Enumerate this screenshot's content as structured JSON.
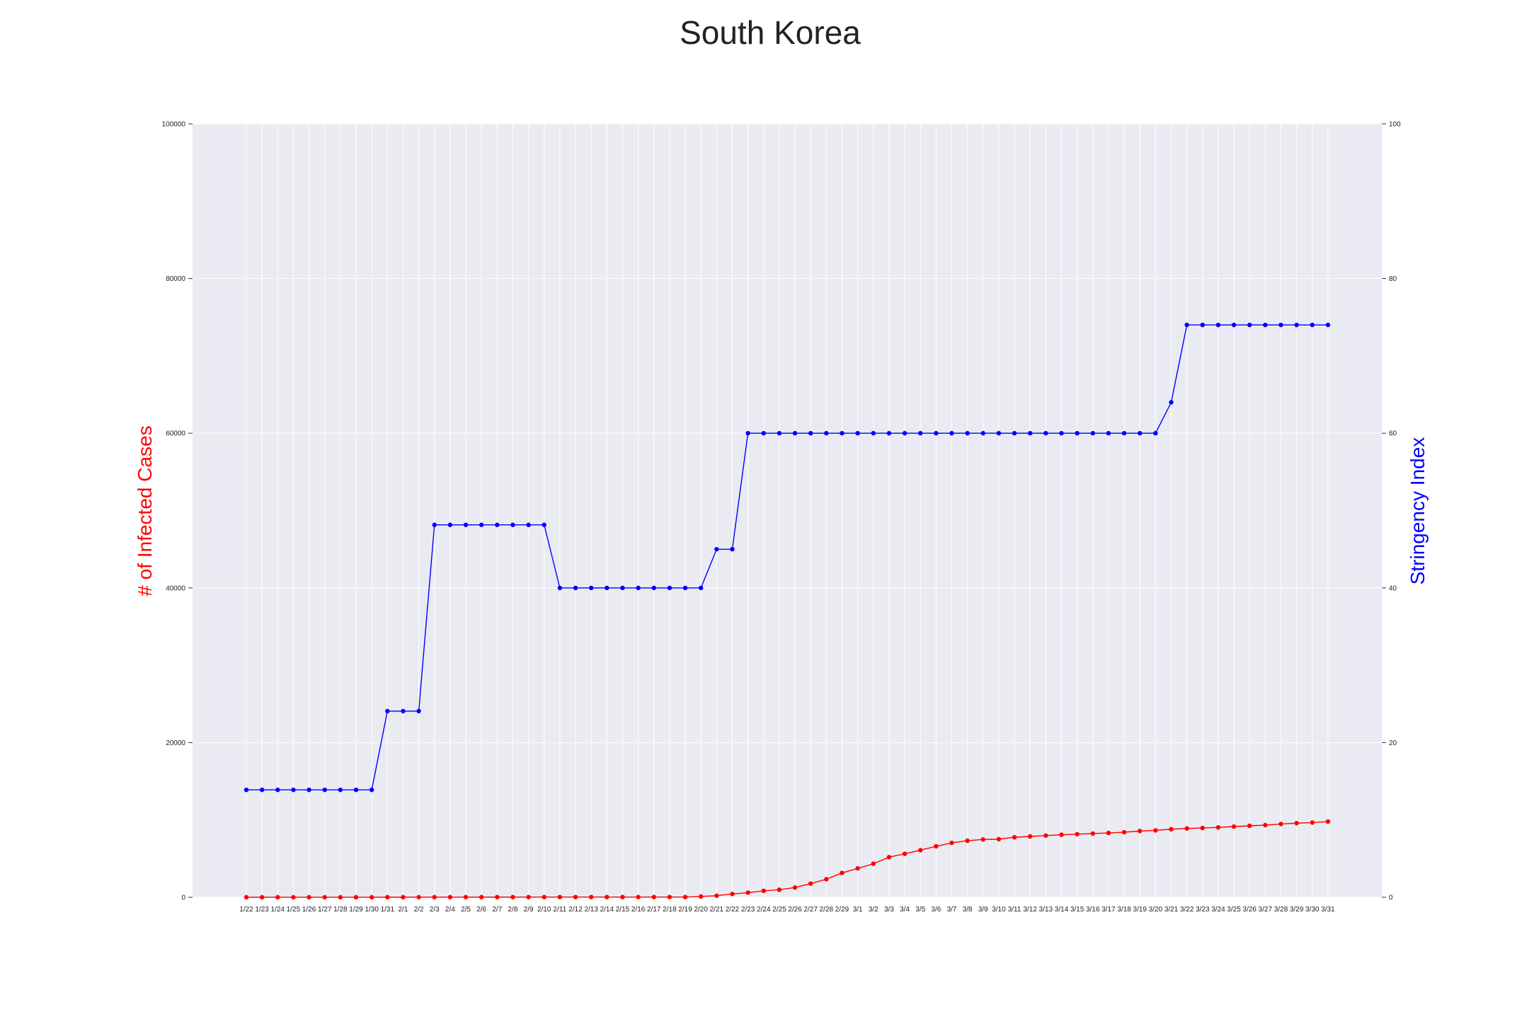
{
  "chart_data": {
    "type": "line",
    "title": "South Korea",
    "xlabel": "",
    "ylabel_left": "# of Infected Cases",
    "ylabel_right": "Stringency Index",
    "ylim_left": [
      0,
      100000
    ],
    "ylim_right": [
      0,
      100
    ],
    "yticks_left": [
      "0",
      "20000",
      "40000",
      "60000",
      "80000",
      "100000"
    ],
    "yticks_right": [
      "0",
      "20",
      "40",
      "60",
      "80",
      "100"
    ],
    "grid": true,
    "colors": {
      "cases": "#ff0000",
      "stringency": "#0000ff",
      "plot_bg": "#eaeaf2",
      "grid": "#ffffff"
    },
    "categories": [
      "1/22",
      "1/23",
      "1/24",
      "1/25",
      "1/26",
      "1/27",
      "1/28",
      "1/29",
      "1/30",
      "1/31",
      "2/1",
      "2/2",
      "2/3",
      "2/4",
      "2/5",
      "2/6",
      "2/7",
      "2/8",
      "2/9",
      "2/10",
      "2/11",
      "2/12",
      "2/13",
      "2/14",
      "2/15",
      "2/16",
      "2/17",
      "2/18",
      "2/19",
      "2/20",
      "2/21",
      "2/22",
      "2/23",
      "2/24",
      "2/25",
      "2/26",
      "2/27",
      "2/28",
      "2/29",
      "3/1",
      "3/2",
      "3/3",
      "3/4",
      "3/5",
      "3/6",
      "3/7",
      "3/8",
      "3/9",
      "3/10",
      "3/11",
      "3/12",
      "3/13",
      "3/14",
      "3/15",
      "3/16",
      "3/17",
      "3/18",
      "3/19",
      "3/20",
      "3/21",
      "3/22",
      "3/23",
      "3/24",
      "3/25",
      "3/26",
      "3/27",
      "3/28",
      "3/29",
      "3/30",
      "3/31"
    ],
    "series": [
      {
        "axis": "left",
        "values": [
          1,
          1,
          2,
          2,
          3,
          4,
          4,
          4,
          4,
          11,
          12,
          15,
          15,
          16,
          19,
          23,
          24,
          24,
          25,
          27,
          28,
          28,
          28,
          28,
          28,
          29,
          30,
          31,
          31,
          104,
          204,
          433,
          602,
          833,
          977,
          1261,
          1766,
          2337,
          3150,
          3736,
          4335,
          5186,
          5621,
          6088,
          6593,
          7041,
          7314,
          7478,
          7513,
          7755,
          7869,
          7979,
          8086,
          8162,
          8236,
          8320,
          8413,
          8565,
          8652,
          8799,
          8897,
          8961,
          9037,
          9137,
          9241,
          9332,
          9478,
          9583,
          9661,
          9786
        ]
      },
      {
        "axis": "right",
        "values": [
          13.89,
          13.89,
          13.89,
          13.89,
          13.89,
          13.89,
          13.89,
          13.89,
          13.89,
          24.07,
          24.07,
          24.07,
          48.15,
          48.15,
          48.15,
          48.15,
          48.15,
          48.15,
          48.15,
          48.15,
          40.0,
          40.0,
          40.0,
          40.0,
          40.0,
          40.0,
          40.0,
          40.0,
          40.0,
          40.0,
          45.0,
          45.0,
          60.0,
          60.0,
          60.0,
          60.0,
          60.0,
          60.0,
          60.0,
          60.0,
          60.0,
          60.0,
          60.0,
          60.0,
          60.0,
          60.0,
          60.0,
          60.0,
          60.0,
          60.0,
          60.0,
          60.0,
          60.0,
          60.0,
          60.0,
          60.0,
          60.0,
          60.0,
          60.0,
          64.0,
          74.0,
          74.0,
          74.0,
          74.0,
          74.0,
          74.0,
          74.0,
          74.0,
          74.0,
          74.0
        ]
      }
    ]
  }
}
